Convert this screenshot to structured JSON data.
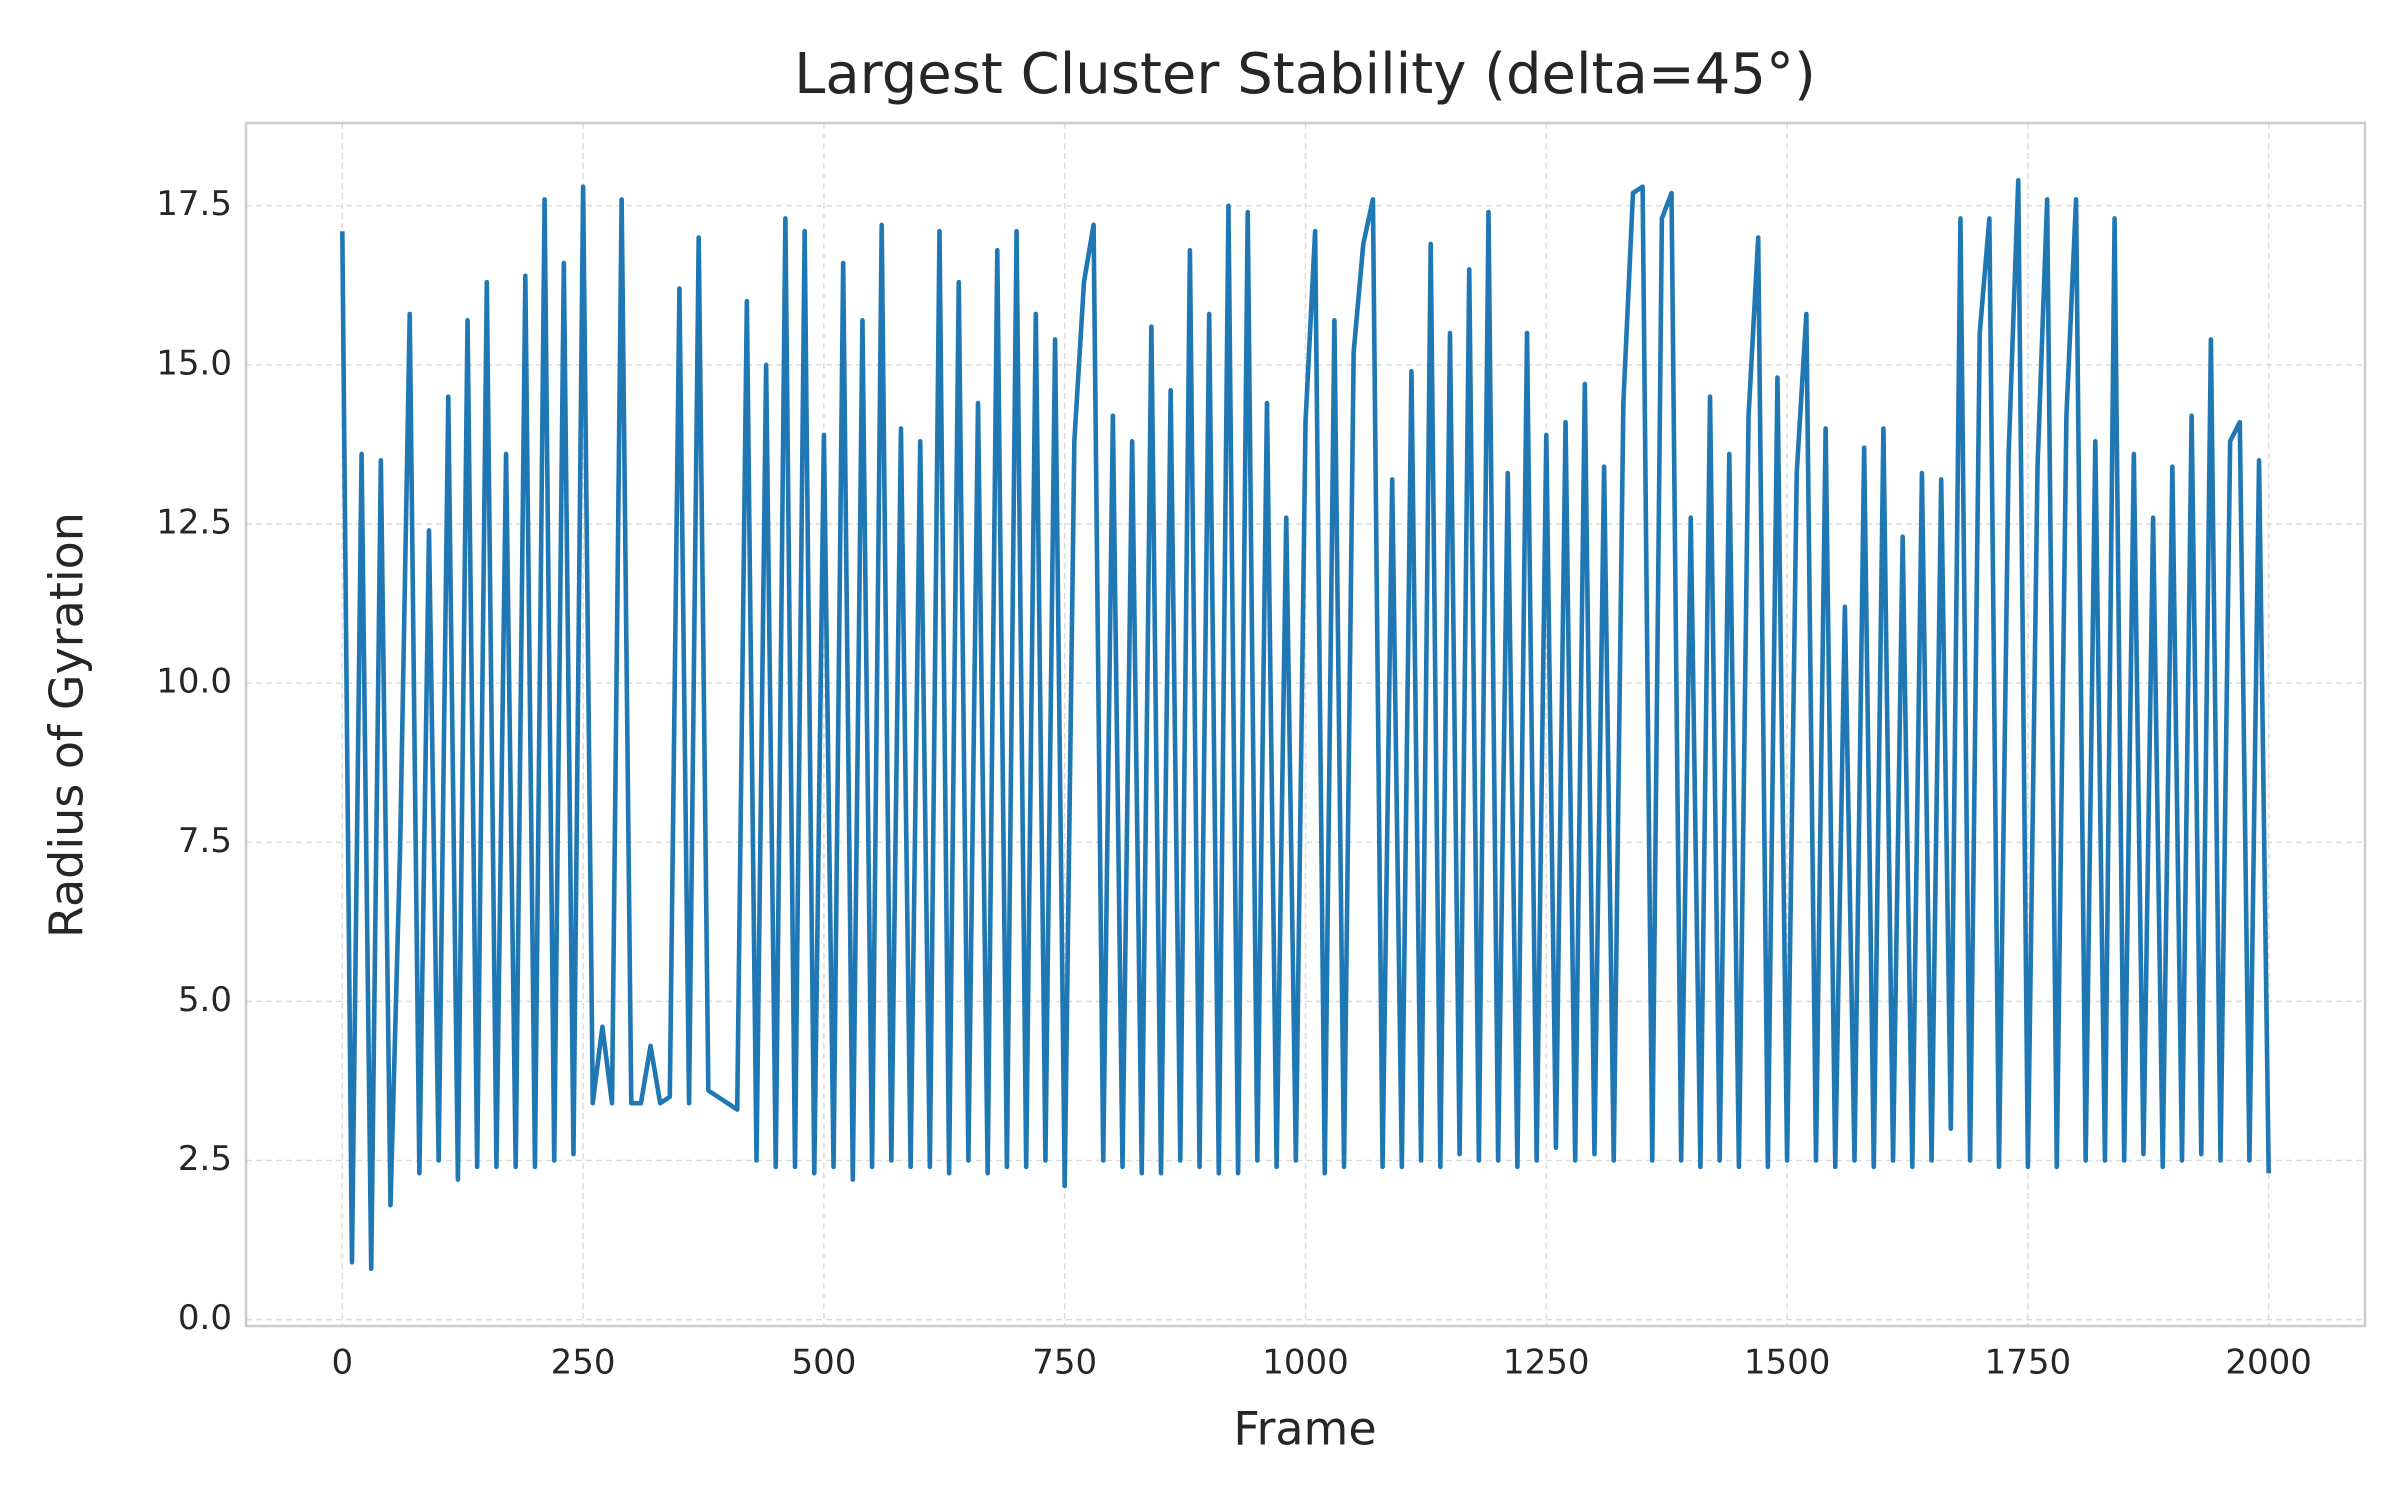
{
  "chart_data": {
    "type": "line",
    "title": "Largest Cluster Stability (delta=45°)",
    "x_label": "Frame",
    "y_label": "Radius of Gyration",
    "x": [
      0,
      10,
      20,
      30,
      40,
      50,
      60,
      70,
      80,
      90,
      100,
      110,
      120,
      130,
      140,
      150,
      160,
      170,
      180,
      190,
      200,
      210,
      220,
      230,
      240,
      250,
      260,
      270,
      280,
      290,
      300,
      310,
      320,
      330,
      340,
      350,
      360,
      370,
      380,
      390,
      400,
      410,
      420,
      430,
      440,
      450,
      460,
      470,
      480,
      490,
      500,
      510,
      520,
      530,
      540,
      550,
      560,
      570,
      580,
      590,
      600,
      610,
      620,
      630,
      640,
      650,
      660,
      670,
      680,
      690,
      700,
      710,
      720,
      730,
      740,
      750,
      760,
      770,
      780,
      790,
      800,
      810,
      820,
      830,
      840,
      850,
      860,
      870,
      880,
      890,
      900,
      910,
      920,
      930,
      940,
      950,
      960,
      970,
      980,
      990,
      1000,
      1010,
      1020,
      1030,
      1040,
      1050,
      1060,
      1070,
      1080,
      1090,
      1100,
      1110,
      1120,
      1130,
      1140,
      1150,
      1160,
      1170,
      1180,
      1190,
      1200,
      1210,
      1220,
      1230,
      1240,
      1250,
      1260,
      1270,
      1280,
      1290,
      1300,
      1310,
      1320,
      1330,
      1340,
      1350,
      1360,
      1370,
      1380,
      1390,
      1400,
      1410,
      1420,
      1430,
      1440,
      1450,
      1460,
      1470,
      1480,
      1490,
      1500,
      1510,
      1520,
      1530,
      1540,
      1550,
      1560,
      1570,
      1580,
      1590,
      1600,
      1610,
      1620,
      1630,
      1640,
      1650,
      1660,
      1670,
      1680,
      1690,
      1700,
      1710,
      1720,
      1730,
      1740,
      1750,
      1760,
      1770,
      1780,
      1790,
      1800,
      1810,
      1820,
      1830,
      1840,
      1850,
      1860,
      1870,
      1880,
      1890,
      1900,
      1910,
      1920,
      1930,
      1940,
      1950,
      1960,
      1970,
      1980,
      1990,
      2000
    ],
    "series": [
      {
        "name": "Radius of Gyration",
        "color": "#1f77b4",
        "values": [
          17.1,
          0.9,
          13.6,
          0.8,
          13.5,
          1.8,
          7.4,
          15.8,
          2.3,
          12.4,
          2.5,
          14.5,
          2.2,
          15.7,
          2.4,
          16.3,
          2.4,
          13.6,
          2.4,
          16.4,
          2.4,
          17.6,
          2.5,
          16.6,
          2.6,
          17.8,
          3.4,
          4.6,
          3.4,
          17.6,
          3.4,
          3.4,
          4.3,
          3.4,
          3.5,
          16.2,
          3.4,
          17.0,
          3.6,
          3.5,
          3.4,
          3.3,
          16.0,
          2.5,
          15.0,
          2.4,
          17.3,
          2.4,
          17.1,
          2.3,
          13.9,
          2.4,
          16.6,
          2.2,
          15.7,
          2.4,
          17.2,
          2.5,
          14.0,
          2.4,
          13.8,
          2.4,
          17.1,
          2.3,
          16.3,
          2.5,
          14.4,
          2.3,
          16.8,
          2.4,
          17.1,
          2.4,
          15.8,
          2.5,
          15.4,
          2.1,
          13.8,
          16.3,
          17.2,
          2.5,
          14.2,
          2.4,
          13.8,
          2.3,
          15.6,
          2.3,
          14.6,
          2.5,
          16.8,
          2.4,
          15.8,
          2.3,
          17.5,
          2.3,
          17.4,
          2.5,
          14.4,
          2.4,
          12.6,
          2.5,
          14.1,
          17.1,
          2.3,
          15.7,
          2.4,
          15.2,
          16.9,
          17.6,
          2.4,
          13.2,
          2.4,
          14.9,
          2.5,
          16.9,
          2.4,
          15.5,
          2.6,
          16.5,
          2.5,
          17.4,
          2.5,
          13.3,
          2.4,
          15.5,
          2.5,
          13.9,
          2.7,
          14.1,
          2.5,
          14.7,
          2.6,
          13.4,
          2.5,
          14.4,
          17.7,
          17.8,
          2.5,
          17.3,
          17.7,
          2.5,
          12.6,
          2.4,
          14.5,
          2.5,
          13.6,
          2.4,
          14.2,
          17.0,
          2.4,
          14.8,
          2.5,
          13.3,
          15.8,
          2.5,
          14.0,
          2.4,
          11.2,
          2.5,
          13.7,
          2.4,
          14.0,
          2.5,
          12.3,
          2.4,
          13.3,
          2.5,
          13.2,
          3.0,
          17.3,
          2.5,
          15.5,
          17.3,
          2.4,
          13.6,
          17.9,
          2.4,
          13.4,
          17.6,
          2.4,
          14.2,
          17.6,
          2.5,
          13.8,
          2.5,
          17.3,
          2.5,
          13.6,
          2.6,
          12.6,
          2.4,
          13.4,
          2.5,
          14.2,
          2.6,
          15.4,
          2.5,
          13.8,
          14.1,
          2.5,
          13.5,
          2.3
        ]
      }
    ],
    "xlim": [
      -100,
      2100
    ],
    "ylim": [
      -0.1,
      18.8
    ],
    "xticks": [
      0,
      250,
      500,
      750,
      1000,
      1250,
      1500,
      1750,
      2000
    ],
    "yticks": [
      {
        "value": 0,
        "label": "0.0"
      },
      2.5,
      {
        "value": 5,
        "label": "5.0"
      },
      7.5,
      {
        "value": 10,
        "label": "10.0"
      },
      12.5,
      {
        "value": 15,
        "label": "15.0"
      },
      17.5
    ],
    "grid": true
  }
}
